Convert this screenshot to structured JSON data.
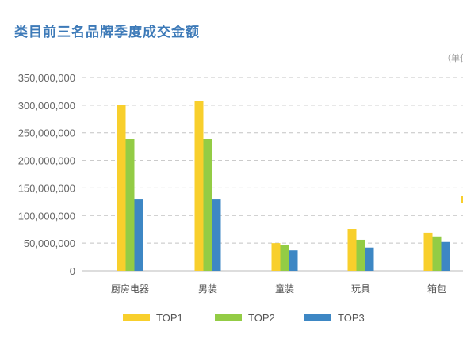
{
  "chart_data": {
    "type": "bar",
    "title": "类目前三名品牌季度成交金额",
    "unit_label": "（单位",
    "xlabel": "",
    "ylabel": "",
    "categories": [
      "厨房电器",
      "男装",
      "童装",
      "玩具",
      "箱包"
    ],
    "y_ticks": [
      "0",
      "50,000,000",
      "100,000,000",
      "150,000,000",
      "200,000,000",
      "250,000,000",
      "300,000,000",
      "350,000,000"
    ],
    "ylim": [
      0,
      350000000
    ],
    "grid": true,
    "legend_position": "bottom",
    "series": [
      {
        "name": "TOP1",
        "color": "#f8cf2c",
        "values": [
          301000000,
          307000000,
          50000000,
          76000000,
          69000000
        ]
      },
      {
        "name": "TOP2",
        "color": "#93cc45",
        "values": [
          239000000,
          239000000,
          46000000,
          56000000,
          62000000
        ]
      },
      {
        "name": "TOP3",
        "color": "#3d87c4",
        "values": [
          129000000,
          129000000,
          37000000,
          42000000,
          52000000
        ]
      }
    ]
  }
}
